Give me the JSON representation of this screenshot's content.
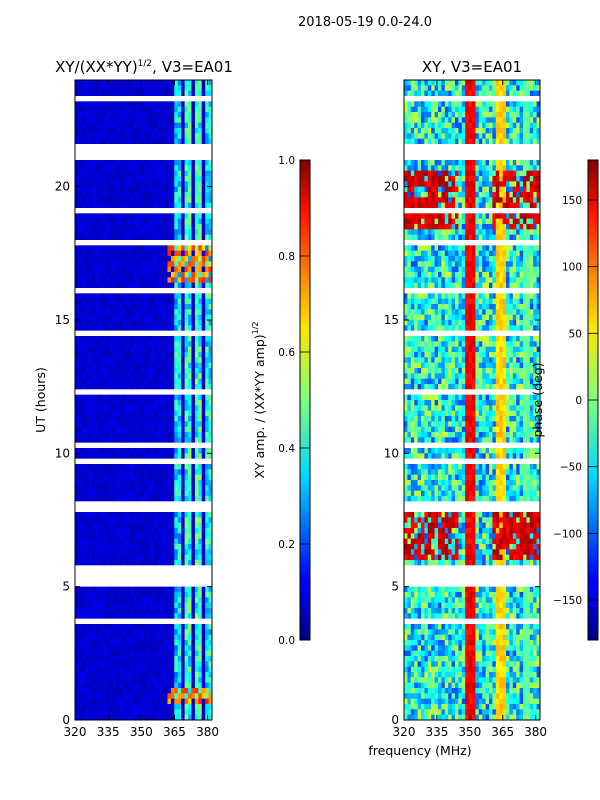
{
  "figure": {
    "suptitle": "2018-05-19 0.0-24.0",
    "xlabel": "frequency (MHz)"
  },
  "chart_data": [
    {
      "type": "heatmap",
      "title_main": "XY/(XX*YY)",
      "title_sup": "1/2",
      "title_tail": ", V3=EA01",
      "ylabel": "UT (hours)",
      "xlim": [
        320,
        382
      ],
      "ylim": [
        0,
        24
      ],
      "xticks": [
        320,
        335,
        350,
        365,
        380
      ],
      "yticks": [
        0,
        5,
        10,
        15,
        20
      ],
      "colorbar": {
        "label_main": "XY amp. / (XX*YY amp)",
        "label_sup": "1/2",
        "range": [
          0.0,
          1.0
        ],
        "ticks": [
          "0.0",
          "0.2",
          "0.4",
          "0.6",
          "0.8",
          "1.0"
        ],
        "tick_values": [
          0,
          0.2,
          0.4,
          0.6,
          0.8,
          1.0
        ]
      },
      "colormap": "jet",
      "background_value": 0.08,
      "channel_band_freqs": [
        366,
        371,
        376,
        380
      ],
      "channel_band_values": [
        0.35,
        0.4,
        0.42,
        0.38
      ],
      "hot_time_ranges": [
        [
          16.5,
          17.7
        ],
        [
          0.6,
          1.2
        ]
      ],
      "hot_value": 0.75,
      "gap_ranges_hours": [
        [
          21.0,
          21.5
        ],
        [
          5.0,
          5.8
        ],
        [
          7.9,
          8.2
        ],
        [
          17.85,
          18.05
        ],
        [
          1.35,
          1.45
        ],
        [
          3.6,
          3.7
        ],
        [
          12.3,
          12.4
        ],
        [
          14.5,
          14.6
        ],
        [
          9.7,
          9.8
        ],
        [
          19.1,
          19.2
        ],
        [
          23.2,
          23.3
        ],
        [
          2.2,
          2.28
        ],
        [
          10.3,
          10.38
        ],
        [
          16.1,
          16.18
        ]
      ]
    },
    {
      "type": "heatmap",
      "title_main": "XY, V3=EA01",
      "xlim": [
        320,
        382
      ],
      "ylim": [
        0,
        24
      ],
      "xticks": [
        320,
        335,
        350,
        365,
        380
      ],
      "yticks": [
        0,
        5,
        10,
        15,
        20
      ],
      "colorbar": {
        "label_main": "phase (deg)",
        "range": [
          -180,
          180
        ],
        "ticks": [
          "150",
          "100",
          "50",
          "0",
          "−50",
          "−100",
          "−150"
        ],
        "tick_values": [
          150,
          100,
          50,
          0,
          -50,
          -100,
          -150
        ]
      },
      "colormap": "jet",
      "stripe_freqs": [
        350,
        364,
        376
      ],
      "stripe_values": [
        140,
        60,
        -10
      ],
      "red_time_ranges": [
        [
          5.9,
          8.0
        ],
        [
          18.5,
          20.5
        ]
      ],
      "red_value": 150,
      "gap_ranges_hours": [
        [
          21.0,
          21.5
        ],
        [
          5.0,
          5.8
        ],
        [
          7.9,
          8.2
        ],
        [
          17.85,
          18.05
        ],
        [
          1.35,
          1.45
        ],
        [
          3.6,
          3.7
        ],
        [
          12.3,
          12.4
        ],
        [
          14.5,
          14.6
        ],
        [
          9.7,
          9.8
        ],
        [
          19.1,
          19.2
        ],
        [
          23.2,
          23.3
        ],
        [
          2.2,
          2.28
        ],
        [
          10.3,
          10.38
        ],
        [
          16.1,
          16.18
        ]
      ]
    }
  ]
}
